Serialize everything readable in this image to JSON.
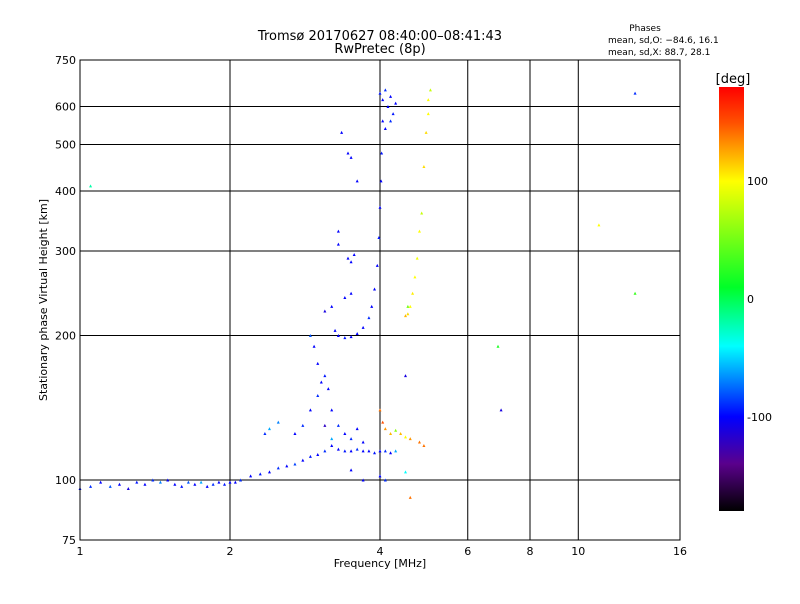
{
  "chart_data": {
    "type": "scatter",
    "title": "Tromsø 20170627 08:40:00–08:41:43",
    "subtitle": "RwPretec (8p)",
    "xlabel": "Frequency [MHz]",
    "ylabel": "Stationary phase Virtual Height [km]",
    "xscale": "log",
    "yscale": "log",
    "xlim": [
      1,
      16
    ],
    "ylim": [
      75,
      750
    ],
    "x_ticks": [
      1,
      2,
      4,
      6,
      8,
      10,
      16
    ],
    "x_grid": [
      2,
      4,
      6,
      8,
      10
    ],
    "y_ticks": [
      75,
      100,
      200,
      300,
      400,
      500,
      600,
      750
    ],
    "y_grid": [
      100,
      200,
      300,
      400,
      500,
      600
    ],
    "grid": true,
    "legend": {
      "title": "Phases",
      "line_o": "mean, sd,O:  −84.6, 16.1",
      "line_x": "mean, sd,X:  88.7, 28.1",
      "placement": "top-right"
    },
    "colorbar": {
      "label": "[deg]",
      "range": [
        -180,
        180
      ],
      "ticks": [
        100,
        0,
        -100
      ]
    },
    "points_format": [
      "frequency_MHz",
      "height_km",
      "phase_deg"
    ],
    "points": [
      [
        1.0,
        96,
        -95
      ],
      [
        1.05,
        97,
        -90
      ],
      [
        1.1,
        99,
        -100
      ],
      [
        1.15,
        97,
        -80
      ],
      [
        1.2,
        98,
        -100
      ],
      [
        1.25,
        96,
        -110
      ],
      [
        1.3,
        99,
        -95
      ],
      [
        1.35,
        98,
        -100
      ],
      [
        1.4,
        100,
        -90
      ],
      [
        1.45,
        99,
        -70
      ],
      [
        1.5,
        100,
        -100
      ],
      [
        1.55,
        98,
        -100
      ],
      [
        1.6,
        97,
        -95
      ],
      [
        1.65,
        99,
        -80
      ],
      [
        1.7,
        98,
        -100
      ],
      [
        1.75,
        99,
        -60
      ],
      [
        1.8,
        97,
        -100
      ],
      [
        1.85,
        98,
        -90
      ],
      [
        1.9,
        99,
        -100
      ],
      [
        1.95,
        98,
        -95
      ],
      [
        2.0,
        99,
        -100
      ],
      [
        2.05,
        99,
        -100
      ],
      [
        2.1,
        100,
        -90
      ],
      [
        2.2,
        102,
        -100
      ],
      [
        2.3,
        103,
        -95
      ],
      [
        2.4,
        104,
        -100
      ],
      [
        2.5,
        106,
        -90
      ],
      [
        2.6,
        107,
        -100
      ],
      [
        2.7,
        108,
        -85
      ],
      [
        2.8,
        110,
        -100
      ],
      [
        2.9,
        112,
        -95
      ],
      [
        3.0,
        113,
        -100
      ],
      [
        3.1,
        115,
        -90
      ],
      [
        3.2,
        118,
        -100
      ],
      [
        3.3,
        116,
        -100
      ],
      [
        3.4,
        115,
        -95
      ],
      [
        3.5,
        115,
        -100
      ],
      [
        3.6,
        116,
        -90
      ],
      [
        3.7,
        115,
        -100
      ],
      [
        3.8,
        115,
        -100
      ],
      [
        3.9,
        114,
        -95
      ],
      [
        4.0,
        115,
        -100
      ],
      [
        4.1,
        115,
        -90
      ],
      [
        4.2,
        114,
        -100
      ],
      [
        4.3,
        115,
        -60
      ],
      [
        2.35,
        125,
        -90
      ],
      [
        2.4,
        128,
        -60
      ],
      [
        2.5,
        132,
        -70
      ],
      [
        2.7,
        125,
        -100
      ],
      [
        2.8,
        130,
        -90
      ],
      [
        2.9,
        140,
        -100
      ],
      [
        3.0,
        150,
        -90
      ],
      [
        3.05,
        160,
        -100
      ],
      [
        3.1,
        165,
        -95
      ],
      [
        3.0,
        175,
        -100
      ],
      [
        2.95,
        190,
        -100
      ],
      [
        2.9,
        200,
        -80
      ],
      [
        3.15,
        155,
        -100
      ],
      [
        3.2,
        140,
        -100
      ],
      [
        3.3,
        130,
        -90
      ],
      [
        3.4,
        125,
        -100
      ],
      [
        3.5,
        122,
        -90
      ],
      [
        3.6,
        128,
        -100
      ],
      [
        3.7,
        120,
        -100
      ],
      [
        3.1,
        130,
        -120
      ],
      [
        3.2,
        122,
        -60
      ],
      [
        3.25,
        205,
        -100
      ],
      [
        3.3,
        200,
        -100
      ],
      [
        3.4,
        198,
        -95
      ],
      [
        3.5,
        199,
        -100
      ],
      [
        3.6,
        202,
        -100
      ],
      [
        3.7,
        208,
        -100
      ],
      [
        3.8,
        218,
        -90
      ],
      [
        3.85,
        230,
        -100
      ],
      [
        3.9,
        250,
        -100
      ],
      [
        3.95,
        280,
        -100
      ],
      [
        3.98,
        320,
        -95
      ],
      [
        4.0,
        370,
        -100
      ],
      [
        4.02,
        420,
        -100
      ],
      [
        4.03,
        480,
        -95
      ],
      [
        4.05,
        560,
        -100
      ],
      [
        4.05,
        620,
        -100
      ],
      [
        4.1,
        650,
        -90
      ],
      [
        4.15,
        600,
        -100
      ],
      [
        4.2,
        630,
        -100
      ],
      [
        4.25,
        580,
        -95
      ],
      [
        4.1,
        540,
        -100
      ],
      [
        4.2,
        560,
        -90
      ],
      [
        4.3,
        610,
        -100
      ],
      [
        4.0,
        640,
        -95
      ],
      [
        3.45,
        290,
        -100
      ],
      [
        3.5,
        285,
        -100
      ],
      [
        3.55,
        295,
        -100
      ],
      [
        3.4,
        240,
        -100
      ],
      [
        3.5,
        245,
        -100
      ],
      [
        3.3,
        310,
        -100
      ],
      [
        3.45,
        480,
        -100
      ],
      [
        3.5,
        470,
        -100
      ],
      [
        3.6,
        420,
        -100
      ],
      [
        3.35,
        530,
        -100
      ],
      [
        3.3,
        330,
        -100
      ],
      [
        3.2,
        230,
        -100
      ],
      [
        3.1,
        225,
        -110
      ],
      [
        4.5,
        220,
        120
      ],
      [
        4.55,
        222,
        110
      ],
      [
        4.6,
        230,
        100
      ],
      [
        4.65,
        245,
        105
      ],
      [
        4.7,
        265,
        100
      ],
      [
        4.75,
        290,
        95
      ],
      [
        4.8,
        330,
        100
      ],
      [
        4.85,
        360,
        80
      ],
      [
        4.9,
        450,
        110
      ],
      [
        4.95,
        530,
        110
      ],
      [
        5.0,
        580,
        100
      ],
      [
        5.0,
        620,
        100
      ],
      [
        5.05,
        650,
        80
      ],
      [
        4.55,
        230,
        50
      ],
      [
        4.0,
        140,
        140
      ],
      [
        4.05,
        132,
        150
      ],
      [
        4.1,
        128,
        130
      ],
      [
        4.2,
        125,
        120
      ],
      [
        4.4,
        125,
        120
      ],
      [
        4.5,
        123,
        100
      ],
      [
        4.6,
        122,
        130
      ],
      [
        4.8,
        120,
        140
      ],
      [
        4.9,
        118,
        140
      ],
      [
        4.3,
        127,
        60
      ],
      [
        4.0,
        102,
        -100
      ],
      [
        4.1,
        100,
        -90
      ],
      [
        3.7,
        100,
        -100
      ],
      [
        4.6,
        92,
        140
      ],
      [
        4.5,
        104,
        -40
      ],
      [
        3.5,
        105,
        -100
      ],
      [
        1.05,
        410,
        -20
      ],
      [
        13,
        640,
        -90
      ],
      [
        11,
        340,
        100
      ],
      [
        13,
        245,
        30
      ],
      [
        7,
        140,
        -110
      ],
      [
        6.9,
        190,
        20
      ],
      [
        4.5,
        165,
        -110
      ]
    ]
  }
}
